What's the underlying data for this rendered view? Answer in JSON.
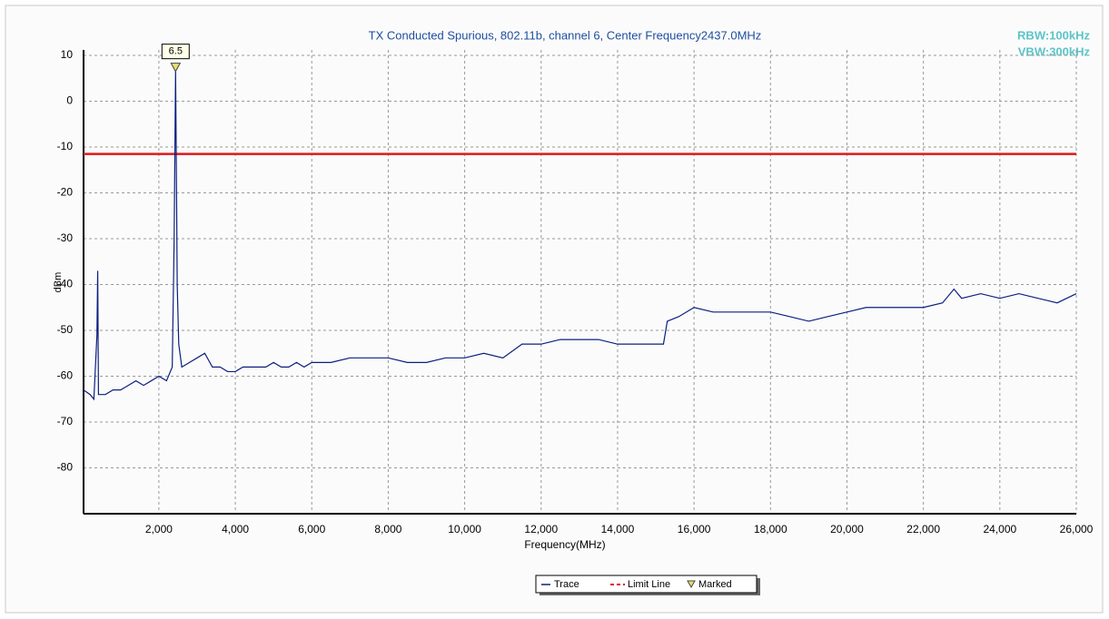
{
  "chart_data": {
    "type": "line",
    "title": "TX Conducted Spurious, 802.11b, channel 6, Center Frequency2437.0MHz",
    "annotations": [
      "RBW:100kHz",
      "VBW:300kHz"
    ],
    "xlabel": "Frequency(MHz)",
    "ylabel": "dBm",
    "xlim": [
      30,
      26000
    ],
    "ylim": [
      -90,
      10
    ],
    "xticks": [
      {
        "value": 2000,
        "label": "2,000"
      },
      {
        "value": 4000,
        "label": "4,000"
      },
      {
        "value": 6000,
        "label": "6,000"
      },
      {
        "value": 8000,
        "label": "8,000"
      },
      {
        "value": 10000,
        "label": "10,000"
      },
      {
        "value": 12000,
        "label": "12,000"
      },
      {
        "value": 14000,
        "label": "14,000"
      },
      {
        "value": 16000,
        "label": "16,000"
      },
      {
        "value": 18000,
        "label": "18,000"
      },
      {
        "value": 20000,
        "label": "20,000"
      },
      {
        "value": 22000,
        "label": "22,000"
      },
      {
        "value": 24000,
        "label": "24,000"
      },
      {
        "value": 26000,
        "label": "26,000"
      }
    ],
    "yticks": [
      10,
      0,
      -10,
      -20,
      -30,
      -40,
      -50,
      -60,
      -70,
      -80
    ],
    "grid": true,
    "legend": "bottom",
    "series": [
      {
        "name": "Trace",
        "color": "#0d1f80",
        "x": [
          30,
          200,
          300,
          380,
          400,
          420,
          600,
          800,
          1000,
          1200,
          1400,
          1600,
          1800,
          2000,
          2200,
          2350,
          2400,
          2437,
          2460,
          2480,
          2520,
          2600,
          2800,
          3000,
          3200,
          3400,
          3600,
          3800,
          4000,
          4200,
          4400,
          4600,
          4800,
          5000,
          5200,
          5400,
          5600,
          5800,
          6000,
          6500,
          7000,
          7500,
          8000,
          8500,
          9000,
          9500,
          10000,
          10500,
          11000,
          11500,
          12000,
          12500,
          13000,
          13500,
          14000,
          14500,
          15000,
          15200,
          15300,
          15600,
          16000,
          16500,
          17000,
          17500,
          18000,
          18500,
          19000,
          19500,
          20000,
          20500,
          21000,
          21500,
          22000,
          22500,
          22800,
          23000,
          23500,
          24000,
          24500,
          25000,
          25500,
          26000
        ],
        "values": [
          -63,
          -64,
          -65,
          -51,
          -37,
          -64,
          -64,
          -63,
          -63,
          -62,
          -61,
          -62,
          -61,
          -60,
          -61,
          -58,
          -30,
          6.5,
          -17,
          -40,
          -53,
          -58,
          -57,
          -56,
          -55,
          -58,
          -58,
          -59,
          -59,
          -58,
          -58,
          -58,
          -58,
          -57,
          -58,
          -58,
          -57,
          -58,
          -57,
          -57,
          -56,
          -56,
          -56,
          -57,
          -57,
          -56,
          -56,
          -55,
          -56,
          -53,
          -53,
          -52,
          -52,
          -52,
          -53,
          -53,
          -53,
          -53,
          -48,
          -47,
          -45,
          -46,
          -46,
          -46,
          -46,
          -47,
          -48,
          -47,
          -46,
          -45,
          -45,
          -45,
          -45,
          -44,
          -41,
          -43,
          -42,
          -43,
          -42,
          -43,
          -44,
          -42
        ]
      }
    ],
    "limit_line": {
      "name": "Limit Line",
      "color": "#e01818",
      "value": -11.5
    },
    "marker": {
      "name": "Marked",
      "color": "#e8e070",
      "x": 2437,
      "value": 6.5
    }
  }
}
